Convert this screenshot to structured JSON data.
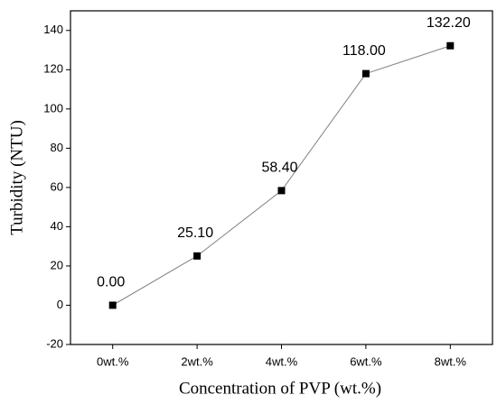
{
  "chart_data": {
    "type": "line",
    "x_label": "Concentration of PVP (wt.%)",
    "y_label": "Turbidity (NTU)",
    "categories": [
      "0wt.%",
      "2wt.%",
      "4wt.%",
      "6wt.%",
      "8wt.%"
    ],
    "values": [
      0,
      25.1,
      58.4,
      118,
      132.2
    ],
    "value_labels": [
      "0.00",
      "25.10",
      "58.40",
      "118.00",
      "132.20"
    ],
    "line_color": "#808080",
    "marker_color": "#000000",
    "ylim": [
      -20,
      150
    ],
    "yticks": [
      -20,
      0,
      20,
      40,
      60,
      80,
      100,
      120,
      140
    ]
  }
}
